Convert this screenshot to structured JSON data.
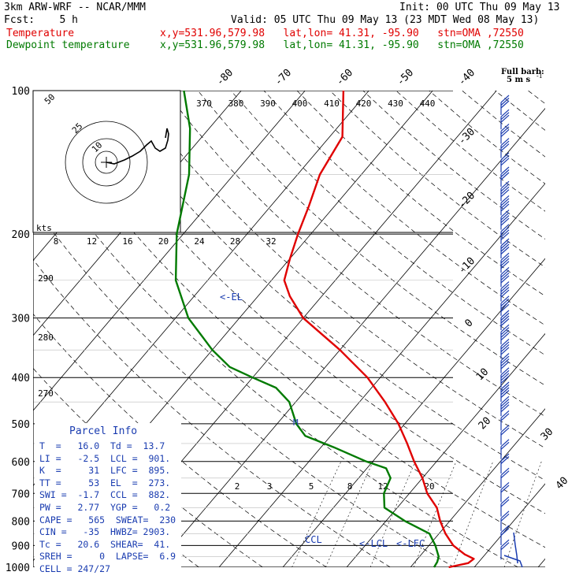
{
  "header": {
    "model": "3km ARW-WRF -- NCAR/MMM",
    "init": "Init: 00 UTC Thu 09 May 13",
    "fcst": "Fcst:    5 h",
    "valid": "Valid: 05 UTC Thu 09 May 13 (23 MDT Wed 08 May 13)",
    "temp_name": "Temperature",
    "temp_loc": "x,y=531.96,579.98   lat,lon= 41.31, -95.90   stn=OMA ,72550",
    "dew_name": "Dewpoint temperature",
    "dew_loc": "x,y=531.96,579.98   lat,lon= 41.31, -95.90   stn=OMA ,72550"
  },
  "colors": {
    "temperature": "#e00000",
    "dewpoint": "#007a00",
    "wind": "#1a3cb0",
    "isobar": "#000000",
    "isotherm": "#000000",
    "annotation": "#1a3cb0"
  },
  "chart_data": {
    "type": "line",
    "title": "",
    "xlabel": "",
    "ylabel": "",
    "y_scale": "log-pressure",
    "ylim": [
      1000,
      100
    ],
    "xlim": [
      -40,
      50
    ],
    "pressure_labels": [
      "100",
      "200",
      "300",
      "400",
      "500",
      "600",
      "700",
      "800",
      "900",
      "1000"
    ],
    "pressure_values": [
      100,
      200,
      300,
      400,
      500,
      600,
      700,
      800,
      900,
      1000
    ],
    "skewed_temp_labels_top": [
      "-80",
      "-70",
      "-60",
      "-50",
      "-40"
    ],
    "skewed_temp_labels_right": [
      "-30",
      "-20",
      "-10",
      "0",
      "10",
      "20",
      "30",
      "40"
    ],
    "theta_labels": [
      "290",
      "280",
      "270"
    ],
    "mixing_ratio_labels": [
      "2",
      "3",
      "5",
      "8",
      "12",
      "20"
    ],
    "theta_e_labels": [
      "370",
      "380",
      "390",
      "400",
      "410",
      "420",
      "430",
      "440"
    ],
    "series": [
      {
        "name": "Temperature",
        "color": "#e00000",
        "points": [
          {
            "p": 1000,
            "t": 16.0
          },
          {
            "p": 980,
            "t": 18.5
          },
          {
            "p": 960,
            "t": 18.8
          },
          {
            "p": 940,
            "t": 16.8
          },
          {
            "p": 900,
            "t": 13.8
          },
          {
            "p": 850,
            "t": 11.0
          },
          {
            "p": 800,
            "t": 8.5
          },
          {
            "p": 750,
            "t": 6.2
          },
          {
            "p": 700,
            "t": 2.8
          },
          {
            "p": 650,
            "t": 0.0
          },
          {
            "p": 600,
            "t": -3.5
          },
          {
            "p": 550,
            "t": -7.0
          },
          {
            "p": 500,
            "t": -11.0
          },
          {
            "p": 450,
            "t": -16.0
          },
          {
            "p": 400,
            "t": -22.0
          },
          {
            "p": 350,
            "t": -30.0
          },
          {
            "p": 300,
            "t": -40.0
          },
          {
            "p": 270,
            "t": -45.0
          },
          {
            "p": 250,
            "t": -48.0
          },
          {
            "p": 225,
            "t": -50.0
          },
          {
            "p": 200,
            "t": -52.0
          },
          {
            "p": 175,
            "t": -54.0
          },
          {
            "p": 150,
            "t": -56.5
          },
          {
            "p": 125,
            "t": -58.0
          },
          {
            "p": 100,
            "t": -64.0
          }
        ]
      },
      {
        "name": "Dewpoint temperature",
        "color": "#007a00",
        "points": [
          {
            "p": 1000,
            "t": 13.7
          },
          {
            "p": 975,
            "t": 13.5
          },
          {
            "p": 950,
            "t": 13.0
          },
          {
            "p": 900,
            "t": 11.0
          },
          {
            "p": 850,
            "t": 8.5
          },
          {
            "p": 800,
            "t": 3.0
          },
          {
            "p": 750,
            "t": -2.0
          },
          {
            "p": 700,
            "t": -4.0
          },
          {
            "p": 650,
            "t": -5.0
          },
          {
            "p": 620,
            "t": -7.0
          },
          {
            "p": 600,
            "t": -11.0
          },
          {
            "p": 560,
            "t": -18.0
          },
          {
            "p": 530,
            "t": -24.0
          },
          {
            "p": 500,
            "t": -27.0
          },
          {
            "p": 450,
            "t": -31.0
          },
          {
            "p": 420,
            "t": -35.0
          },
          {
            "p": 400,
            "t": -40.0
          },
          {
            "p": 380,
            "t": -45.0
          },
          {
            "p": 350,
            "t": -50.0
          },
          {
            "p": 300,
            "t": -58.0
          },
          {
            "p": 250,
            "t": -65.0
          },
          {
            "p": 200,
            "t": -71.0
          },
          {
            "p": 150,
            "t": -77.0
          },
          {
            "p": 120,
            "t": -83.0
          },
          {
            "p": 100,
            "t": -89.0
          }
        ]
      }
    ],
    "levels_annotations": [
      {
        "label": "<-EL",
        "p": 273
      },
      {
        "label": "<-LCL",
        "p": 901
      },
      {
        "label": "<-LFC",
        "p": 895
      },
      {
        "label": "CCL",
        "p": 882
      }
    ]
  },
  "hodograph": {
    "kts_label": "kts",
    "ring_labels": [
      "10",
      "25",
      "50"
    ]
  },
  "wind_barb_legend": {
    "title": "Full barb:",
    "value": "5 m s",
    "superscript": "-1"
  },
  "parcel_info": {
    "title": "Parcel Info",
    "lines": [
      "T  =   16.0  Td =  13.7",
      "LI =   -2.5  LCL =  901.",
      "K  =     31  LFC =  895.",
      "TT =     53  EL  =  273.",
      "SWI =  -1.7  CCL =  882.",
      "PW =   2.77  YGP =   0.2",
      "CAPE =   565  SWEAT=  230",
      "CIN =   -35  HWBZ= 2903.",
      "Tc =   20.6  SHEAR=  41.",
      "SREH =     0  LAPSE=  6.9",
      "CELL = 247/27"
    ]
  }
}
